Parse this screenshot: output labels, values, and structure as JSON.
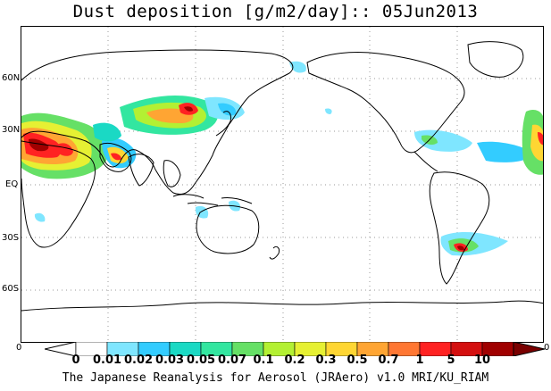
{
  "title": "Dust deposition [g/m2/day]:: 05Jun2013",
  "latitude_labels": [
    "60N",
    "30N",
    "EQ",
    "30S",
    "60S"
  ],
  "colorbar": {
    "left_end": "0",
    "right_end": "0",
    "ticks": [
      "0",
      "0.01",
      "0.02",
      "0.03",
      "0.05",
      "0.07",
      "0.1",
      "0.2",
      "0.3",
      "0.5",
      "0.7",
      "1",
      "5",
      "10"
    ],
    "colors": [
      "#ffffff",
      "#ffffff",
      "#7fe6ff",
      "#33ccff",
      "#1ad9c4",
      "#33e6a0",
      "#66e066",
      "#b3f033",
      "#e6f033",
      "#ffd633",
      "#ffa533",
      "#ff7733",
      "#ff2222",
      "#d41010",
      "#a00000",
      "#7a0000"
    ]
  },
  "credit": "The Japanese Reanalysis for Aerosol (JRAero) v1.0 MRI/KU_RIAM",
  "colors": {
    "coastline": "#000000",
    "grid": "#9a9a9a"
  }
}
